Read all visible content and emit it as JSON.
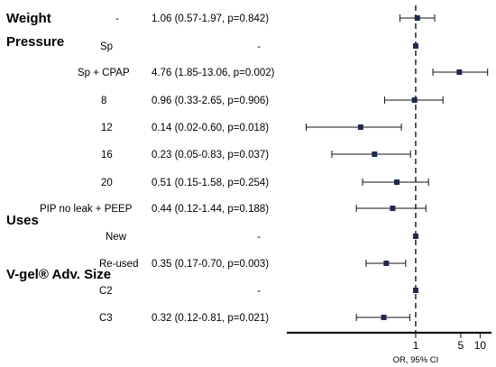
{
  "chart_data": {
    "type": "forest",
    "xscale": "log",
    "reference_line": 1,
    "xlabel": "OR, 95% CI",
    "xticks": [
      1,
      5,
      10
    ],
    "xlim": [
      0.01,
      15
    ],
    "rows": [
      {
        "kind": "group",
        "group": "Weight",
        "label": "-",
        "estimate_text": "1.06 (0.57-1.97, p=0.842)",
        "or": 1.06,
        "lo": 0.57,
        "hi": 1.97
      },
      {
        "kind": "group",
        "group": "Pressure"
      },
      {
        "kind": "item",
        "label": "Sp",
        "estimate_text": "-",
        "or": 1,
        "lo": null,
        "hi": null
      },
      {
        "kind": "item",
        "label": "Sp + CPAP",
        "estimate_text": "4.76 (1.85-13.06, p=0.002)",
        "or": 4.76,
        "lo": 1.85,
        "hi": 13.06
      },
      {
        "kind": "item",
        "label": "8",
        "estimate_text": "0.96 (0.33-2.65, p=0.906)",
        "or": 0.96,
        "lo": 0.33,
        "hi": 2.65
      },
      {
        "kind": "item",
        "label": "12",
        "estimate_text": "0.14 (0.02-0.60, p=0.018)",
        "or": 0.14,
        "lo": 0.02,
        "hi": 0.6
      },
      {
        "kind": "item",
        "label": "16",
        "estimate_text": "0.23 (0.05-0.83, p=0.037)",
        "or": 0.23,
        "lo": 0.05,
        "hi": 0.83
      },
      {
        "kind": "item",
        "label": "20",
        "estimate_text": "0.51 (0.15-1.58, p=0.254)",
        "or": 0.51,
        "lo": 0.15,
        "hi": 1.58
      },
      {
        "kind": "item",
        "label": "PIP no leak + PEEP",
        "estimate_text": "0.44 (0.12-1.44, p=0.188)",
        "or": 0.44,
        "lo": 0.12,
        "hi": 1.44
      },
      {
        "kind": "group",
        "group": "Uses"
      },
      {
        "kind": "item",
        "label": "New",
        "estimate_text": "-",
        "or": 1,
        "lo": null,
        "hi": null
      },
      {
        "kind": "item",
        "label": "Re-used",
        "estimate_text": "0.35 (0.17-0.70, p=0.003)",
        "or": 0.35,
        "lo": 0.17,
        "hi": 0.7
      },
      {
        "kind": "group",
        "group": "V-gel® Adv. Size"
      },
      {
        "kind": "item",
        "label": "C2",
        "estimate_text": "-",
        "or": 1,
        "lo": null,
        "hi": null
      },
      {
        "kind": "item",
        "label": "C3",
        "estimate_text": "0.32 (0.12-0.81, p=0.021)",
        "or": 0.32,
        "lo": 0.12,
        "hi": 0.81
      }
    ],
    "colors": {
      "point": "#1f2a4d",
      "line": "#111111"
    }
  }
}
